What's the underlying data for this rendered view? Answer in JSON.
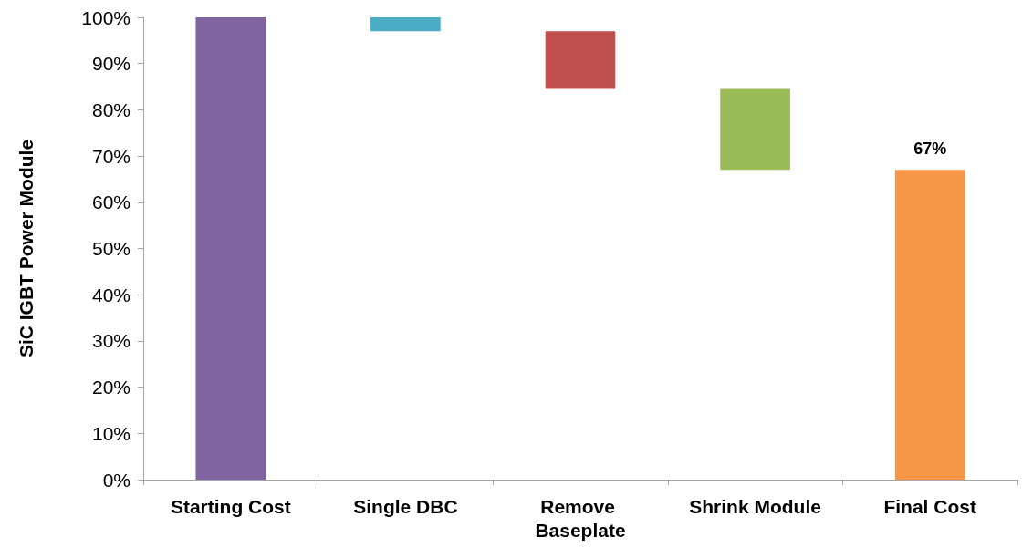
{
  "chart_data": {
    "type": "bar",
    "ylabel": "SiC IGBT Power Module",
    "categories": [
      "Starting Cost",
      "Single DBC",
      "Remove Baseplate",
      "Shrink Module",
      "Final Cost"
    ],
    "values": [
      100,
      3,
      12.5,
      17.5,
      67
    ],
    "base": [
      0,
      97,
      84.5,
      67,
      0
    ],
    "colors": [
      "#8064a2",
      "#4bacc6",
      "#c0504d",
      "#9bbb59",
      "#f79646"
    ],
    "value_labels": [
      null,
      null,
      null,
      null,
      "67%"
    ],
    "ylim": [
      0,
      100
    ],
    "yticks": [
      {
        "value": 0,
        "label": "0%"
      },
      {
        "value": 10,
        "label": "10%"
      },
      {
        "value": 20,
        "label": "20%"
      },
      {
        "value": 30,
        "label": "30%"
      },
      {
        "value": 40,
        "label": "40%"
      },
      {
        "value": 50,
        "label": "50%"
      },
      {
        "value": 60,
        "label": "60%"
      },
      {
        "value": 70,
        "label": "70%"
      },
      {
        "value": 80,
        "label": "80%"
      },
      {
        "value": 90,
        "label": "90%"
      },
      {
        "value": 100,
        "label": "100%"
      }
    ],
    "grid": false
  }
}
